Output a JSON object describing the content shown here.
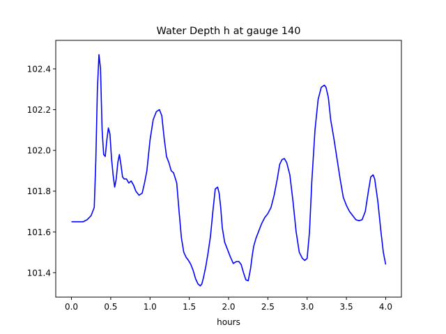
{
  "chart_data": {
    "type": "line",
    "title": "Water Depth h at gauge 140",
    "xlabel": "hours",
    "ylabel": "",
    "xlim": [
      -0.2,
      4.2
    ],
    "ylim": [
      101.28,
      102.54
    ],
    "xticks": [
      0.0,
      0.5,
      1.0,
      1.5,
      2.0,
      2.5,
      3.0,
      3.5,
      4.0
    ],
    "xtick_labels": [
      "0.0",
      "0.5",
      "1.0",
      "1.5",
      "2.0",
      "2.5",
      "3.0",
      "3.5",
      "4.0"
    ],
    "yticks": [
      101.4,
      101.6,
      101.8,
      102.0,
      102.2,
      102.4
    ],
    "ytick_labels": [
      "101.4",
      "101.6",
      "101.8",
      "102.0",
      "102.2",
      "102.4"
    ],
    "grid": false,
    "legend": "none",
    "series": [
      {
        "color": "#0000ff",
        "x": [
          0.0,
          0.1,
          0.15,
          0.2,
          0.25,
          0.29,
          0.31,
          0.33,
          0.35,
          0.37,
          0.39,
          0.41,
          0.43,
          0.45,
          0.47,
          0.49,
          0.51,
          0.53,
          0.55,
          0.57,
          0.59,
          0.61,
          0.63,
          0.65,
          0.67,
          0.7,
          0.73,
          0.76,
          0.79,
          0.82,
          0.86,
          0.9,
          0.93,
          0.96,
          1.0,
          1.04,
          1.08,
          1.12,
          1.15,
          1.18,
          1.21,
          1.24,
          1.27,
          1.3,
          1.34,
          1.37,
          1.4,
          1.43,
          1.46,
          1.49,
          1.52,
          1.55,
          1.58,
          1.61,
          1.64,
          1.66,
          1.68,
          1.71,
          1.74,
          1.77,
          1.8,
          1.83,
          1.86,
          1.88,
          1.9,
          1.92,
          1.95,
          1.98,
          2.02,
          2.06,
          2.1,
          2.13,
          2.16,
          2.19,
          2.22,
          2.25,
          2.28,
          2.3,
          2.32,
          2.35,
          2.38,
          2.42,
          2.46,
          2.5,
          2.54,
          2.58,
          2.62,
          2.65,
          2.68,
          2.71,
          2.74,
          2.78,
          2.82,
          2.86,
          2.9,
          2.94,
          2.97,
          3.0,
          3.03,
          3.06,
          3.1,
          3.14,
          3.18,
          3.22,
          3.24,
          3.27,
          3.3,
          3.34,
          3.38,
          3.42,
          3.46,
          3.5,
          3.54,
          3.58,
          3.62,
          3.66,
          3.7,
          3.74,
          3.78,
          3.81,
          3.84,
          3.86,
          3.9,
          3.94,
          3.97,
          4.0
        ],
        "y": [
          101.65,
          101.65,
          101.65,
          101.66,
          101.68,
          101.72,
          101.95,
          102.3,
          102.47,
          102.4,
          102.1,
          101.98,
          101.97,
          102.05,
          102.11,
          102.08,
          101.96,
          101.88,
          101.82,
          101.86,
          101.94,
          101.98,
          101.93,
          101.87,
          101.86,
          101.86,
          101.84,
          101.85,
          101.83,
          101.8,
          101.78,
          101.79,
          101.84,
          101.9,
          102.05,
          102.15,
          102.19,
          102.2,
          102.17,
          102.06,
          101.97,
          101.94,
          101.9,
          101.89,
          101.84,
          101.7,
          101.57,
          101.5,
          101.475,
          101.46,
          101.44,
          101.41,
          101.37,
          101.345,
          101.335,
          101.345,
          101.375,
          101.43,
          101.5,
          101.58,
          101.7,
          101.81,
          101.82,
          101.79,
          101.72,
          101.62,
          101.55,
          101.52,
          101.48,
          101.445,
          101.455,
          101.455,
          101.44,
          101.4,
          101.365,
          101.36,
          101.42,
          101.48,
          101.53,
          101.57,
          101.6,
          101.64,
          101.67,
          101.69,
          101.72,
          101.78,
          101.86,
          101.93,
          101.955,
          101.96,
          101.94,
          101.88,
          101.75,
          101.6,
          101.5,
          101.47,
          101.46,
          101.47,
          101.6,
          101.85,
          102.1,
          102.25,
          102.31,
          102.32,
          102.31,
          102.26,
          102.15,
          102.06,
          101.96,
          101.86,
          101.77,
          101.73,
          101.7,
          101.68,
          101.66,
          101.655,
          101.66,
          101.7,
          101.8,
          101.87,
          101.88,
          101.86,
          101.75,
          101.6,
          101.5,
          101.44
        ]
      }
    ]
  }
}
